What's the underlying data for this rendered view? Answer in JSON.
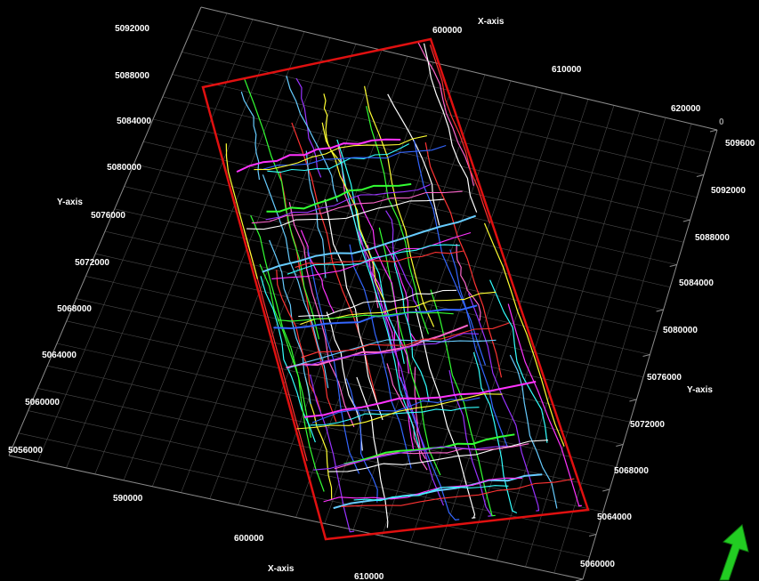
{
  "viewer": {
    "colors": {
      "background": "#000000",
      "grid": "#4a4a4a",
      "boundary": "#e01010",
      "label": "#ffffff",
      "compass": "#22cc22"
    },
    "axes": {
      "x_title": "X-axis",
      "y_title": "Y-axis",
      "z_zero": "0",
      "left_y_ticks": [
        "5092000",
        "5088000",
        "5084000",
        "5080000",
        "5076000",
        "5072000",
        "5068000",
        "5064000",
        "5060000",
        "5056000"
      ],
      "top_x_ticks": [
        "600000",
        "610000",
        "620000"
      ],
      "right_y_ticks": [
        "509600",
        "5092000",
        "5088000",
        "5084000",
        "5080000",
        "5076000",
        "5072000",
        "5068000",
        "5064000",
        "5060000"
      ],
      "bottom_x_ticks": [
        "590000",
        "600000",
        "610000"
      ]
    },
    "compass_icon": "north-arrow-icon",
    "fault_line_colors": [
      "#ff33ff",
      "#33ffff",
      "#3366ff",
      "#ffff33",
      "#33ff33",
      "#ffffff",
      "#ff66cc",
      "#9933ff",
      "#66ccff",
      "#ff3333"
    ]
  }
}
